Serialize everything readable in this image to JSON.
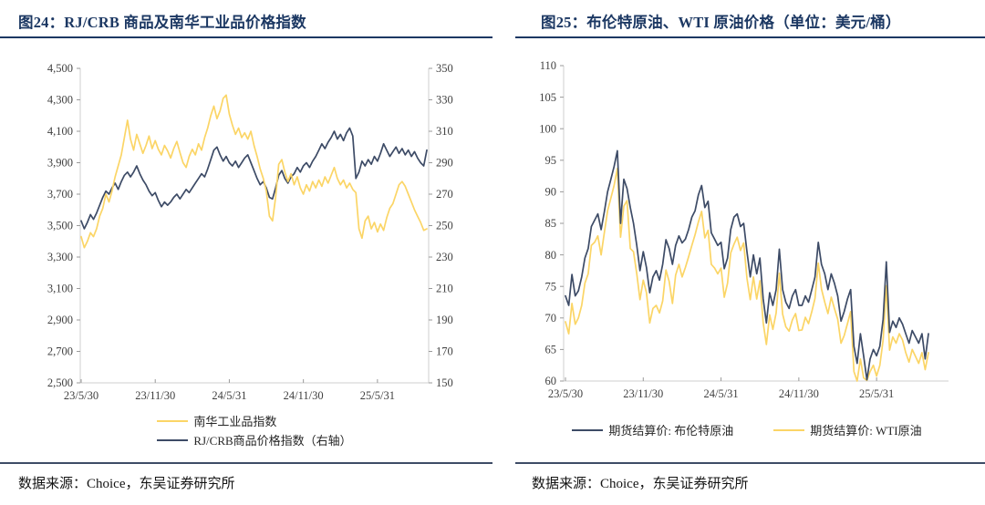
{
  "colors": {
    "title_navy": "#1c3863",
    "line_navy": "#3d4b66",
    "line_yellow": "#fbd566",
    "axis_gray": "#cfcfcf",
    "tick_gray": "#9a9a9a",
    "axis_text": "#404040"
  },
  "figures": [
    {
      "id": "fig24",
      "title": "图24：RJ/CRB 商品及南华工业品价格指数",
      "source": "数据来源：Choice，东吴证券研究所",
      "chart_data": {
        "type": "line",
        "x_tick_labels": [
          "23/5/30",
          "23/11/30",
          "24/5/31",
          "24/11/30",
          "25/5/31"
        ],
        "x_tick_months": [
          0,
          6,
          12,
          18,
          24
        ],
        "total_months": 28,
        "grid": false,
        "legend_layout": "stacked",
        "left_axis": {
          "min": 2500,
          "max": 4500,
          "tick_labels": [
            "2,500",
            "2,700",
            "2,900",
            "3,100",
            "3,300",
            "3,500",
            "3,700",
            "3,900",
            "4,100",
            "4,300",
            "4,500"
          ]
        },
        "right_axis": {
          "min": 150,
          "max": 350,
          "tick_labels": [
            "150",
            "170",
            "190",
            "210",
            "230",
            "250",
            "270",
            "290",
            "310",
            "330",
            "350"
          ]
        },
        "series": [
          {
            "name": "南华工业品指数",
            "axis": "left",
            "color": "#fbd566",
            "values": [
              3430,
              3360,
              3400,
              3455,
              3430,
              3480,
              3560,
              3610,
              3700,
              3650,
              3720,
              3810,
              3880,
              3950,
              4060,
              4170,
              4050,
              3980,
              4080,
              4020,
              3960,
              4010,
              4070,
              3990,
              4040,
              3985,
              3950,
              4010,
              3975,
              3930,
              3990,
              4035,
              3965,
              3900,
              3870,
              3940,
              3985,
              3950,
              4020,
              3980,
              4060,
              4120,
              4200,
              4260,
              4180,
              4230,
              4310,
              4330,
              4210,
              4140,
              4080,
              4120,
              4060,
              4090,
              4050,
              4100,
              4010,
              3940,
              3860,
              3800,
              3720,
              3560,
              3530,
              3680,
              3890,
              3920,
              3840,
              3780,
              3830,
              3760,
              3810,
              3740,
              3700,
              3760,
              3720,
              3780,
              3740,
              3790,
              3750,
              3810,
              3770,
              3820,
              3870,
              3800,
              3760,
              3790,
              3740,
              3770,
              3730,
              3710,
              3480,
              3420,
              3530,
              3560,
              3480,
              3520,
              3460,
              3510,
              3470,
              3550,
              3610,
              3640,
              3700,
              3760,
              3780,
              3750,
              3700,
              3650,
              3600,
              3560,
              3520,
              3470,
              3480
            ]
          },
          {
            "name": "RJ/CRB商品价格指数（右轴）",
            "axis": "right",
            "color": "#3d4b66",
            "values": [
              253,
              248,
              252,
              257,
              254,
              258,
              263,
              268,
              272,
              270,
              274,
              277,
              273,
              278,
              282,
              284,
              281,
              284,
              288,
              283,
              279,
              276,
              272,
              269,
              271,
              266,
              262,
              265,
              263,
              265,
              268,
              270,
              267,
              270,
              273,
              271,
              274,
              277,
              280,
              283,
              281,
              286,
              292,
              298,
              300,
              295,
              291,
              294,
              290,
              288,
              291,
              287,
              290,
              293,
              295,
              290,
              285,
              280,
              276,
              278,
              274,
              268,
              267,
              274,
              282,
              285,
              280,
              277,
              281,
              283,
              287,
              284,
              288,
              290,
              287,
              291,
              294,
              298,
              302,
              299,
              303,
              306,
              310,
              305,
              308,
              304,
              309,
              312,
              307,
              280,
              284,
              291,
              288,
              292,
              289,
              294,
              291,
              296,
              302,
              298,
              294,
              297,
              300,
              296,
              299,
              295,
              298,
              294,
              297,
              293,
              290,
              288,
              298
            ]
          }
        ]
      }
    },
    {
      "id": "fig25",
      "title": "图25：布伦特原油、WTI 原油价格（单位：美元/桶）",
      "source": "数据来源：Choice，东吴证券研究所",
      "chart_data": {
        "type": "line",
        "x_tick_labels": [
          "23/5/30",
          "23/11/30",
          "24/5/31",
          "24/11/30",
          "25/5/31"
        ],
        "x_tick_months": [
          0,
          6,
          12,
          18,
          24
        ],
        "total_months": 28,
        "grid": false,
        "legend_layout": "row",
        "left_axis": {
          "min": 60,
          "max": 110,
          "tick_labels": [
            "60",
            "65",
            "70",
            "75",
            "80",
            "85",
            "90",
            "95",
            "100",
            "105",
            "110"
          ]
        },
        "series": [
          {
            "name": "期货结算价: 布伦特原油",
            "axis": "left",
            "color": "#3d4b66",
            "values": [
              73.5,
              72.0,
              76.9,
              73.5,
              74.3,
              76.5,
              79.5,
              81.0,
              84.5,
              85.5,
              86.5,
              84.0,
              86.8,
              90.0,
              92.0,
              94.0,
              96.5,
              85.0,
              92.0,
              90.5,
              87.5,
              85.0,
              81.5,
              77.5,
              80.5,
              78.0,
              74.0,
              76.5,
              77.5,
              76.0,
              78.5,
              82.4,
              81.0,
              78.5,
              81.5,
              83.0,
              81.9,
              82.5,
              84.0,
              86.0,
              87.0,
              89.5,
              91.0,
              87.5,
              88.5,
              83.5,
              82.5,
              81.5,
              82.0,
              77.8,
              79.5,
              84.0,
              86.0,
              86.5,
              84.5,
              85.0,
              80.5,
              76.5,
              80.0,
              77.0,
              79.5,
              73.0,
              69.2,
              74.0,
              72.0,
              74.5,
              80.9,
              74.5,
              72.5,
              71.5,
              73.5,
              74.5,
              72.0,
              72.0,
              73.5,
              72.5,
              74.5,
              76.5,
              82.0,
              78.5,
              77.0,
              74.5,
              77.0,
              75.5,
              73.5,
              69.5,
              71.0,
              73.0,
              74.5,
              65.5,
              62.8,
              67.5,
              64.0,
              60.2,
              63.5,
              65.0,
              64.0,
              65.5,
              69.8,
              78.9,
              67.7,
              69.5,
              68.5,
              70.0,
              69.0,
              67.5,
              66.0,
              68.0,
              67.0,
              66.0,
              67.5,
              63.5,
              67.5
            ]
          },
          {
            "name": "期货结算价: WTI原油",
            "axis": "left",
            "color": "#fbd566",
            "values": [
              69.4,
              67.5,
              72.3,
              69.0,
              70.0,
              72.0,
              75.5,
              77.0,
              81.5,
              82.0,
              83.0,
              80.0,
              83.5,
              87.0,
              89.0,
              91.0,
              93.7,
              82.8,
              87.7,
              88.6,
              81.0,
              80.5,
              77.0,
              72.9,
              76.0,
              74.0,
              69.2,
              71.5,
              72.0,
              70.8,
              72.7,
              77.6,
              75.8,
              72.3,
              76.8,
              78.5,
              76.5,
              78.0,
              79.7,
              81.5,
              83.2,
              85.2,
              86.9,
              82.7,
              83.9,
              78.5,
              77.9,
              77.0,
              77.9,
              73.3,
              75.5,
              80.3,
              81.7,
              82.8,
              80.7,
              81.9,
              76.3,
              72.9,
              76.5,
              73.0,
              75.9,
              69.2,
              65.8,
              70.5,
              68.2,
              70.8,
              77.1,
              70.6,
              68.6,
              67.9,
              69.7,
              70.7,
              68.0,
              68.1,
              70.1,
              69.1,
              71.0,
              73.1,
              78.7,
              74.6,
              72.5,
              70.7,
              73.3,
              71.5,
              69.8,
              66.0,
              67.2,
              69.1,
              71.0,
              61.5,
              60.0,
              63.5,
              60.5,
              60.1,
              61.5,
              62.5,
              60.8,
              62.5,
              66.5,
              75.1,
              64.9,
              67.0,
              66.0,
              67.5,
              66.5,
              64.5,
              63.0,
              65.0,
              63.9,
              62.8,
              64.5,
              61.8,
              64.5
            ]
          }
        ]
      }
    }
  ]
}
